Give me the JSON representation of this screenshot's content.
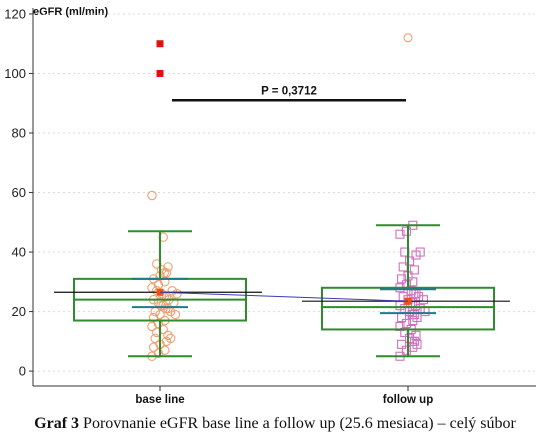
{
  "caption": {
    "label": "Graf 3",
    "text": "Porovnanie eGFR base line a follow up (25.6 mesiaca) – celý súbor"
  },
  "chart_data": {
    "type": "box",
    "ylabel": "eGFR (ml/min)",
    "ylim": [
      -5,
      122
    ],
    "yticks": [
      0,
      20,
      40,
      60,
      80,
      100,
      120
    ],
    "categories": [
      "base line",
      "follow up"
    ],
    "annotation": {
      "text": "P = 0,3712",
      "y": 91
    },
    "colors": {
      "box": "#2e8b2e",
      "mean_ci": "#1f7a8c",
      "base_points": "#f0a070",
      "follow_points": "#d070c0",
      "outlier": "#e01010",
      "mean_marker": "#f05010",
      "connector": "#3a3ab0"
    },
    "series": [
      {
        "name": "base line",
        "whisker_low": 5,
        "q1": 17,
        "median": 24,
        "q3": 31,
        "whisker_high": 47,
        "mean": 26.5,
        "mean_ci": [
          21.5,
          31
        ],
        "far_outliers": [
          100,
          110
        ],
        "points": [
          5,
          6,
          7,
          8,
          9,
          10,
          11,
          11,
          12,
          13,
          14,
          15,
          16,
          17,
          18,
          19,
          19,
          20,
          20,
          21,
          21,
          22,
          22,
          23,
          23,
          24,
          24,
          25,
          25,
          26,
          26,
          27,
          27,
          28,
          29,
          30,
          31,
          32,
          33,
          33,
          34,
          35,
          36,
          45,
          59
        ]
      },
      {
        "name": "follow up",
        "whisker_low": 5,
        "q1": 14,
        "median": 21.5,
        "q3": 28,
        "whisker_high": 49,
        "mean": 23.5,
        "mean_ci": [
          19.5,
          27.5
        ],
        "far_outliers": [
          112
        ],
        "points": [
          5,
          7,
          8,
          9,
          9,
          10,
          10,
          11,
          12,
          13,
          14,
          15,
          16,
          17,
          18,
          18,
          19,
          19,
          20,
          20,
          21,
          21,
          22,
          22,
          23,
          23,
          24,
          24,
          25,
          25,
          26,
          26,
          27,
          28,
          29,
          30,
          31,
          32,
          34,
          35,
          37,
          39,
          40,
          40,
          46,
          47,
          49
        ]
      }
    ]
  }
}
